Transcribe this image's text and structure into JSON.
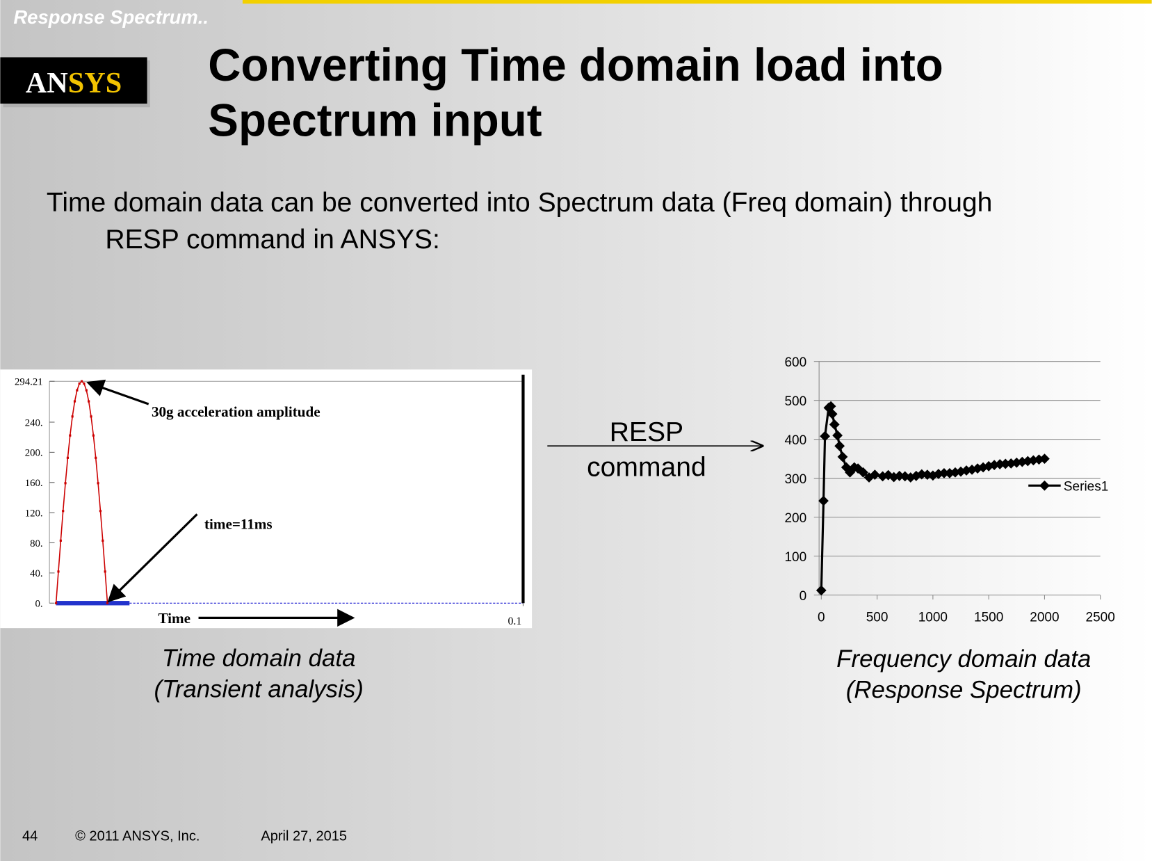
{
  "header": {
    "section": "Response Spectrum..",
    "logo": "ANSYS"
  },
  "title": [
    "Converting Time domain load into",
    "Spectrum input"
  ],
  "body": [
    "Time domain data can be converted into Spectrum data (Freq domain) through",
    "RESP command in ANSYS:"
  ],
  "arrow_label": [
    "RESP",
    "command"
  ],
  "captions": {
    "left": [
      "Time domain data",
      "(Transient analysis)"
    ],
    "right": [
      "Frequency domain data",
      "(Response Spectrum)"
    ]
  },
  "footer": {
    "page": "44",
    "copyright": "© 2011 ANSYS, Inc.",
    "date": "April 27, 2015"
  },
  "chart_data": [
    {
      "type": "line",
      "color": "#cc0000",
      "x_label": "Time",
      "annotations": [
        "30g acceleration amplitude",
        "time=11ms"
      ],
      "x": [
        0,
        0.0005,
        0.001,
        0.0015,
        0.002,
        0.0025,
        0.003,
        0.0035,
        0.004,
        0.0045,
        0.005,
        0.0055,
        0.006,
        0.0065,
        0.007,
        0.0075,
        0.008,
        0.0085,
        0.009,
        0.0095,
        0.01,
        0.0105,
        0.011
      ],
      "values": [
        0,
        41.87,
        82.89,
        122.22,
        159.05,
        192.68,
        222.34,
        247.52,
        267.62,
        282.29,
        291.21,
        294.21,
        291.21,
        282.29,
        267.62,
        247.52,
        222.34,
        192.68,
        159.05,
        122.22,
        82.89,
        41.87,
        0
      ],
      "xlim": [
        0,
        0.1
      ],
      "xticks": [
        0.1
      ],
      "ylim": [
        0,
        294.21
      ],
      "yticks": [
        {
          "value": 0,
          "label": "0."
        },
        {
          "value": 40,
          "label": "40."
        },
        {
          "value": 80,
          "label": "80."
        },
        {
          "value": 120,
          "label": "120."
        },
        {
          "value": 160,
          "label": "160."
        },
        {
          "value": 200,
          "label": "200."
        },
        {
          "value": 240,
          "label": "240."
        },
        294.21
      ]
    },
    {
      "type": "line",
      "grid": true,
      "legend": "right",
      "x": [
        0,
        20,
        33,
        66,
        86,
        99,
        118,
        145,
        164,
        191,
        224,
        257,
        296,
        329,
        375,
        428,
        480,
        550,
        600,
        650,
        700,
        750,
        800,
        850,
        900,
        950,
        1000,
        1050,
        1100,
        1150,
        1200,
        1250,
        1300,
        1350,
        1400,
        1450,
        1500,
        1550,
        1600,
        1650,
        1700,
        1750,
        1800,
        1850,
        1900,
        1950,
        2000
      ],
      "series": [
        {
          "name": "Series1",
          "color": "#000000",
          "values": [
            12,
            242,
            408,
            481,
            485,
            465,
            438,
            410,
            383,
            355,
            328,
            315,
            328,
            325,
            315,
            302,
            309,
            305,
            308,
            303,
            306,
            305,
            302,
            306,
            310,
            309,
            307,
            311,
            313,
            313,
            315,
            317,
            320,
            322,
            325,
            328,
            331,
            334,
            336,
            337,
            338,
            340,
            342,
            344,
            346,
            348,
            350
          ]
        }
      ],
      "xlim": [
        0,
        2500
      ],
      "xticks": [
        0,
        500,
        1000,
        1500,
        2000,
        2500
      ],
      "ylim": [
        0,
        600
      ],
      "yticks": [
        0,
        100,
        200,
        300,
        400,
        500,
        600
      ]
    }
  ]
}
